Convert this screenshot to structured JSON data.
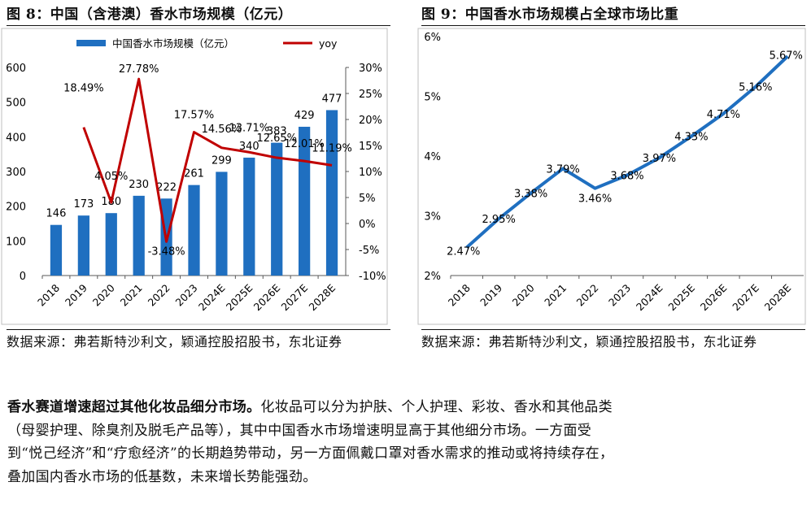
{
  "left_panel": {
    "title": "图 8：中国（含港澳）香水市场规模（亿元）",
    "source": "数据来源：弗若斯特沙利文，颖通控股招股书，东北证券"
  },
  "right_panel": {
    "title": "图 9：中国香水市场规模占全球市场比重",
    "source": "数据来源：弗若斯特沙利文，颖通控股招股书，东北证券"
  },
  "paragraph": {
    "lead": "香水赛道增速超过其他化妆品细分市场。",
    "body": "化妆品可以分为护肤、个人护理、彩妆、香水和其他品类（母婴护理、除臭剂及脱毛产品等），其中中国香水市场增速明显高于其他细分市场。一方面受到“悦己经济”和“疗愈经济”的长期趋势带动，另一方面佩戴口罩对香水需求的推动或将持续存在，叠加国内香水市场的低基数，未来增长势能强劲。"
  },
  "colors": {
    "bar": "#1f6fc0",
    "yoy": "#c00000",
    "share": "#1f6fc0",
    "axis": "#595959",
    "border": "#bfbfbf"
  },
  "chart_data": [
    {
      "type": "bar",
      "categories": [
        "2018",
        "2019",
        "2020",
        "2021",
        "2022",
        "2023",
        "2024E",
        "2025E",
        "2026E",
        "2027E",
        "2028E"
      ],
      "series": [
        {
          "name": "中国香水市场规模（亿元）",
          "type": "bar",
          "axis": "left",
          "values": [
            146,
            173,
            180,
            230,
            222,
            261,
            299,
            340,
            383,
            429,
            477
          ],
          "labels": [
            "146",
            "173",
            "180",
            "230",
            "222",
            "261",
            "299",
            "340",
            "383",
            "429",
            "477"
          ]
        },
        {
          "name": "yoy",
          "type": "line",
          "axis": "right",
          "values": [
            null,
            18.49,
            4.05,
            27.78,
            -3.48,
            17.57,
            14.56,
            13.71,
            12.65,
            12.01,
            11.19
          ],
          "labels": [
            "",
            "18.49%",
            "4.05%",
            "27.78%",
            "-3.48%",
            "17.57%",
            "14.56%",
            "13.71%",
            "12.65%",
            "12.01%",
            "11.19%"
          ]
        }
      ],
      "ylim_left": [
        0,
        600
      ],
      "yticks_left": [
        "0",
        "100",
        "200",
        "300",
        "400",
        "500",
        "600"
      ],
      "ylim_right": [
        -10,
        30
      ],
      "yticks_right": [
        "-10%",
        "-5%",
        "0%",
        "5%",
        "10%",
        "15%",
        "20%",
        "25%",
        "30%"
      ],
      "legend_position": "top",
      "grid": false
    },
    {
      "type": "line",
      "categories": [
        "2018",
        "2019",
        "2020",
        "2021",
        "2022",
        "2023",
        "2024E",
        "2025E",
        "2026E",
        "2027E",
        "2028E"
      ],
      "series": [
        {
          "values": [
            2.47,
            2.95,
            3.38,
            3.79,
            3.46,
            3.68,
            3.97,
            4.33,
            4.71,
            5.16,
            5.67
          ],
          "labels": [
            "2.47%",
            "2.95%",
            "3.38%",
            "3.79%",
            "3.46%",
            "3.68%",
            "3.97%",
            "4.33%",
            "4.71%",
            "5.16%",
            "5.67%"
          ]
        }
      ],
      "ylim": [
        2,
        6
      ],
      "yticks": [
        "2%",
        "3%",
        "4%",
        "5%",
        "6%"
      ],
      "grid": false
    }
  ]
}
